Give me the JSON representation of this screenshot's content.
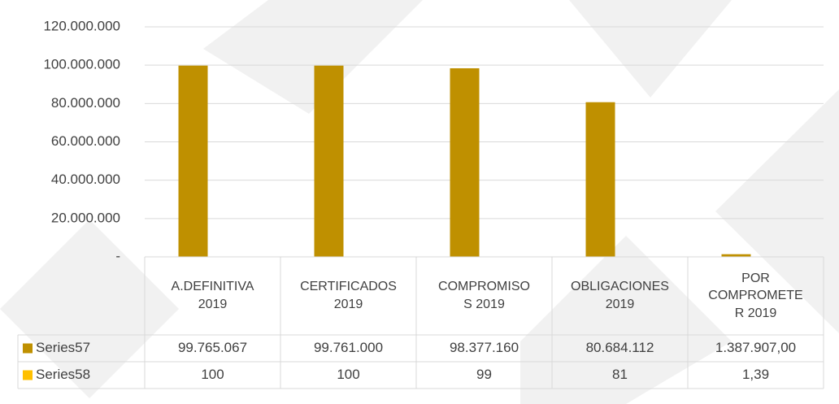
{
  "chart_data": {
    "type": "bar",
    "categories": [
      "A.DEFINITIVA 2019",
      "CERTIFICADOS 2019",
      "COMPROMISOS 2019",
      "OBLIGACIONES 2019",
      "POR COMPROMETER 2019"
    ],
    "series": [
      {
        "name": "Series57",
        "color": "#bf9000",
        "values": [
          99765067,
          99761000,
          98377160,
          80684112,
          1387907
        ],
        "value_labels": [
          "99.765.067",
          "99.761.000",
          "98.377.160",
          "80.684.112",
          "1.387.907,00"
        ]
      },
      {
        "name": "Series58",
        "color": "#ffc000",
        "values": [
          100,
          100,
          99,
          81,
          1.39
        ],
        "value_labels": [
          "100",
          "100",
          "99",
          "81",
          "1,39"
        ]
      }
    ],
    "ylim": [
      0,
      120000000
    ],
    "yticks": [
      {
        "value": 0,
        "label": "-"
      },
      {
        "value": 20000000,
        "label": "20.000.000"
      },
      {
        "value": 40000000,
        "label": "40.000.000"
      },
      {
        "value": 60000000,
        "label": "60.000.000"
      },
      {
        "value": 80000000,
        "label": "80.000.000"
      },
      {
        "value": 100000000,
        "label": "100.000.000"
      },
      {
        "value": 120000000,
        "label": "120.000.000"
      }
    ],
    "grid": true,
    "legend": "table"
  }
}
